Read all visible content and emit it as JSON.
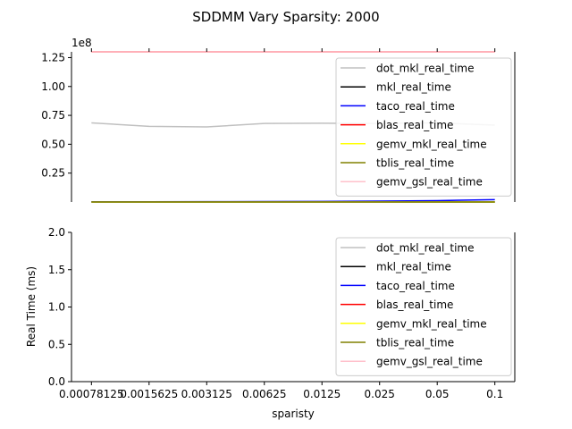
{
  "chart_data": {
    "type": "line",
    "title": "SDDMM Vary Sparsity: 2000",
    "xlabel": "sparisty",
    "x_tick_labels": [
      "0.00078125",
      "0.0015625",
      "0.003125",
      "0.00625",
      "0.0125",
      "0.025",
      "0.05",
      "0.1"
    ],
    "top_panel": {
      "ylim": [
        0,
        130000000.0
      ],
      "offset_label": "1e8",
      "y_ticks": [
        25000000.0,
        50000000.0,
        75000000.0,
        100000000.0,
        125000000.0
      ],
      "y_tick_labels": [
        "0.25",
        "0.50",
        "0.75",
        "1.00",
        "1.25"
      ],
      "series": [
        {
          "name": "dot_mkl_real_time",
          "color": "#c0c0c0",
          "values": [
            68500000,
            65500000,
            65000000,
            68000000,
            68200000,
            68000000,
            68500000,
            66500000
          ]
        },
        {
          "name": "mkl_real_time",
          "color": "#000000",
          "values": [
            0,
            0,
            0,
            0,
            0,
            0,
            0,
            0
          ]
        },
        {
          "name": "taco_real_time",
          "color": "#0000ff",
          "values": [
            150000,
            200000,
            250000,
            350000,
            500000,
            800000,
            1200000,
            2000000
          ]
        },
        {
          "name": "blas_real_time",
          "color": "#ff0000",
          "values": [
            130000000,
            130000000,
            130000000,
            130000000,
            130000000,
            130000000,
            130000000,
            130000000
          ]
        },
        {
          "name": "gemv_mkl_real_time",
          "color": "#ffff00",
          "values": [
            0,
            0,
            0,
            0,
            0,
            0,
            0,
            0
          ]
        },
        {
          "name": "tblis_real_time",
          "color": "#808000",
          "values": [
            50000,
            50000,
            50000,
            50000,
            50000,
            50000,
            50000,
            50000
          ]
        },
        {
          "name": "gemv_gsl_real_time",
          "color": "#ffc0cb",
          "values": [
            130000000,
            130000000,
            130000000,
            130000000,
            130000000,
            130000000,
            130000000,
            130000000
          ]
        }
      ]
    },
    "bottom_panel": {
      "ylabel": "Real Time (ms)",
      "ylim": [
        0,
        2.0
      ],
      "y_ticks": [
        0,
        0.5,
        1.0,
        1.5,
        2.0
      ],
      "y_tick_labels": [
        "0.0",
        "0.5",
        "1.0",
        "1.5",
        "2.0"
      ],
      "series": [
        {
          "name": "dot_mkl_real_time",
          "color": "#c0c0c0"
        },
        {
          "name": "mkl_real_time",
          "color": "#000000"
        },
        {
          "name": "taco_real_time",
          "color": "#0000ff"
        },
        {
          "name": "blas_real_time",
          "color": "#ff0000"
        },
        {
          "name": "gemv_mkl_real_time",
          "color": "#ffff00"
        },
        {
          "name": "tblis_real_time",
          "color": "#808000"
        },
        {
          "name": "gemv_gsl_real_time",
          "color": "#ffc0cb"
        }
      ]
    },
    "legend_position": "upper right",
    "grid": false
  }
}
